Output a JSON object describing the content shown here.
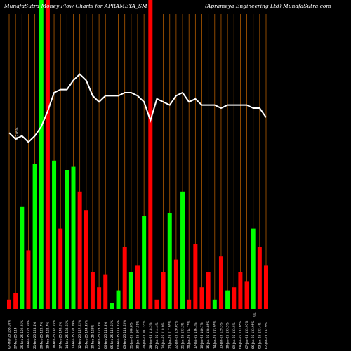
{
  "header": {
    "left_title": "MunafaSutra  Money Flow  Charts for APRAMEYA_SM",
    "right_title": "(Aprameya  Engineering Ltd) MunafaSutra.com"
  },
  "chart_data": {
    "type": "bar",
    "title": "MunafaSutra  Money Flow  Charts for APRAMEYA_SM",
    "subtitle": "(Aprameya  Engineering Ltd) MunafaSutra.com",
    "xlabel": "",
    "ylabel": "",
    "ylim": [
      0,
      100
    ],
    "grid": "vertical",
    "colors": {
      "up": "#00ff00",
      "down": "#ff0000",
      "line": "#ffffff",
      "grid": "#b05a00",
      "background": "#000000"
    },
    "categories": [
      "07-Mar-25 133.05%",
      "27-Feb-25 114",
      "25-Feb-25 129.25%",
      "24-Feb-25 122.58%",
      "21-Feb-25 128.4%",
      "20-Feb-25 120.7%",
      "19-Feb-25 122.7%",
      "18-Feb-25 142.05%",
      "17-Feb-25 143.6%",
      "14-Feb-25 133.65%",
      "13-Feb-25 134.29%",
      "12-Feb-25 127.22%",
      "11-Feb-25 144.45%",
      "10-Feb-25 128%",
      "07-Feb-25 123.5%",
      "06-Feb-25 118.8%",
      "05-Feb-25 119.55%",
      "04-Feb-25 119.75%",
      "03-Feb-25 118.65%",
      "31-Jan-25 108.8%",
      "30-Jan-25 107.55%",
      "29-Jan-25 107.55%",
      "28-Jan-25 118.5%",
      "27-Jan-25 114.4%",
      "24-Jan-25 118.9%",
      "23-Jan-25 117.95%",
      "22-Jan-25 120.05%",
      "21-Jan-25 133.3%",
      "20-Jan-25 134.75%",
      "17-Jan-25 136.3%",
      "16-Jan-25 140.7%",
      "15-Jan-25 138.85%",
      "14-Jan-25 133.95%",
      "13-Jan-25 129.5%",
      "10-Jan-25 133.5%",
      "09-Jan-25 133.5%",
      "08-Jan-25 133.05%",
      "07-Jan-25 133.95%",
      "06-Jan-25 133.95%",
      "03-Jan-25 133.4%",
      "02-Jan-25 132.9%"
    ],
    "values": [
      3,
      5,
      33,
      19,
      47,
      100,
      100,
      48,
      26,
      45,
      46,
      38,
      32,
      12,
      7,
      11,
      2,
      6,
      20,
      12,
      14,
      30,
      100,
      3,
      12,
      31,
      16,
      38,
      3,
      21,
      7,
      12,
      3,
      17,
      6,
      7,
      12,
      9,
      26,
      20,
      14
    ],
    "directions": [
      "down",
      "down",
      "up",
      "down",
      "up",
      "up",
      "down",
      "up",
      "down",
      "up",
      "up",
      "down",
      "down",
      "down",
      "down",
      "down",
      "up",
      "up",
      "down",
      "up",
      "down",
      "up",
      "down",
      "down",
      "down",
      "up",
      "down",
      "up",
      "down",
      "down",
      "down",
      "down",
      "up",
      "down",
      "up",
      "down",
      "down",
      "down",
      "up",
      "down",
      "red"
    ],
    "line_values": [
      57,
      55,
      56,
      54,
      56,
      59,
      64,
      70,
      71,
      71,
      74,
      76,
      74,
      69,
      67,
      69,
      69,
      69,
      70,
      70,
      69,
      67,
      61,
      68,
      67,
      66,
      69,
      70,
      67,
      68,
      66,
      66,
      66,
      65,
      66,
      66,
      66,
      66,
      65,
      65,
      62
    ],
    "labels": [
      "07-Mar-25 133.05%",
      "6%"
    ]
  }
}
